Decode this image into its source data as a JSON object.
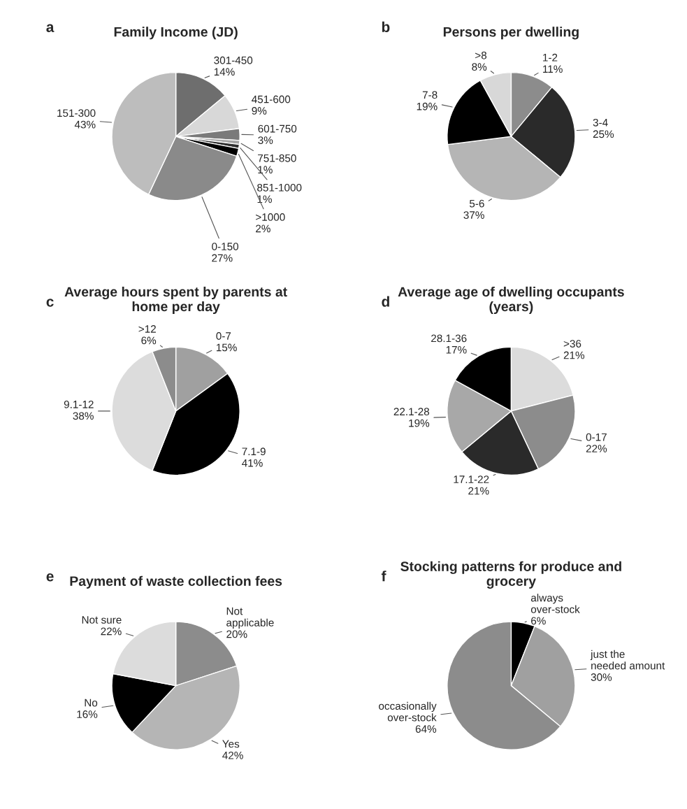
{
  "chart_data": [
    {
      "type": "pie",
      "title": "Family Income (JD)",
      "annotations": [
        "a"
      ],
      "categories": [
        "301-450",
        "451-600",
        "601-750",
        "751-850",
        "851-1000",
        ">1000",
        "0-150",
        "151-300"
      ],
      "values": [
        14,
        9,
        3,
        1,
        1,
        2,
        27,
        43
      ],
      "value_labels": [
        "14%",
        "9%",
        "3%",
        "1%",
        "1%",
        "2%",
        "27%",
        "43%"
      ],
      "colors": [
        "#6e6e6e",
        "#d8d8d8",
        "#7a7a7a",
        "#a6a6a6",
        "#303030",
        "#000000",
        "#8a8a8a",
        "#bdbdbd"
      ]
    },
    {
      "type": "pie",
      "title": "Persons per dwelling",
      "annotations": [
        "b"
      ],
      "categories": [
        "1-2",
        "3-4",
        "5-6",
        "7-8",
        ">8"
      ],
      "values": [
        11,
        25,
        37,
        19,
        8
      ],
      "value_labels": [
        "11%",
        "25%",
        "37%",
        "19%",
        "8%"
      ],
      "colors": [
        "#8c8c8c",
        "#2a2a2a",
        "#b5b5b5",
        "#000000",
        "#d8d8d8"
      ]
    },
    {
      "type": "pie",
      "title": "Average hours spent by parents at\nhome per day",
      "annotations": [
        "c"
      ],
      "categories": [
        "0-7",
        "7.1-9",
        "9.1-12",
        ">12"
      ],
      "values": [
        15,
        41,
        38,
        6
      ],
      "value_labels": [
        "15%",
        "41%",
        "38%",
        "6%"
      ],
      "colors": [
        "#a0a0a0",
        "#000000",
        "#dcdcdc",
        "#8c8c8c"
      ]
    },
    {
      "type": "pie",
      "title": "Average age of dwelling occupants\n(years)",
      "annotations": [
        "d"
      ],
      "categories": [
        ">36",
        "0-17",
        "17.1-22",
        "22.1-28",
        "28.1-36"
      ],
      "values": [
        21,
        22,
        21,
        19,
        17
      ],
      "value_labels": [
        "21%",
        "22%",
        "21%",
        "19%",
        "17%"
      ],
      "colors": [
        "#dcdcdc",
        "#8c8c8c",
        "#2a2a2a",
        "#a8a8a8",
        "#000000"
      ]
    },
    {
      "type": "pie",
      "title": "Payment of waste collection fees",
      "annotations": [
        "e"
      ],
      "categories": [
        "Not\napplicable",
        "Yes",
        "No",
        "Not sure"
      ],
      "values": [
        20,
        42,
        16,
        22
      ],
      "value_labels": [
        "20%",
        "42%",
        "16%",
        "22%"
      ],
      "colors": [
        "#8c8c8c",
        "#b5b5b5",
        "#000000",
        "#dcdcdc"
      ]
    },
    {
      "type": "pie",
      "title": "Stocking patterns for produce and\ngrocery",
      "annotations": [
        "f"
      ],
      "categories": [
        "always\nover-stock",
        "just the\nneeded amount",
        "occasionally\nover-stock"
      ],
      "values": [
        6,
        30,
        64
      ],
      "value_labels": [
        "6%",
        "30%",
        "64%"
      ],
      "colors": [
        "#000000",
        "#a0a0a0",
        "#8c8c8c"
      ]
    }
  ]
}
